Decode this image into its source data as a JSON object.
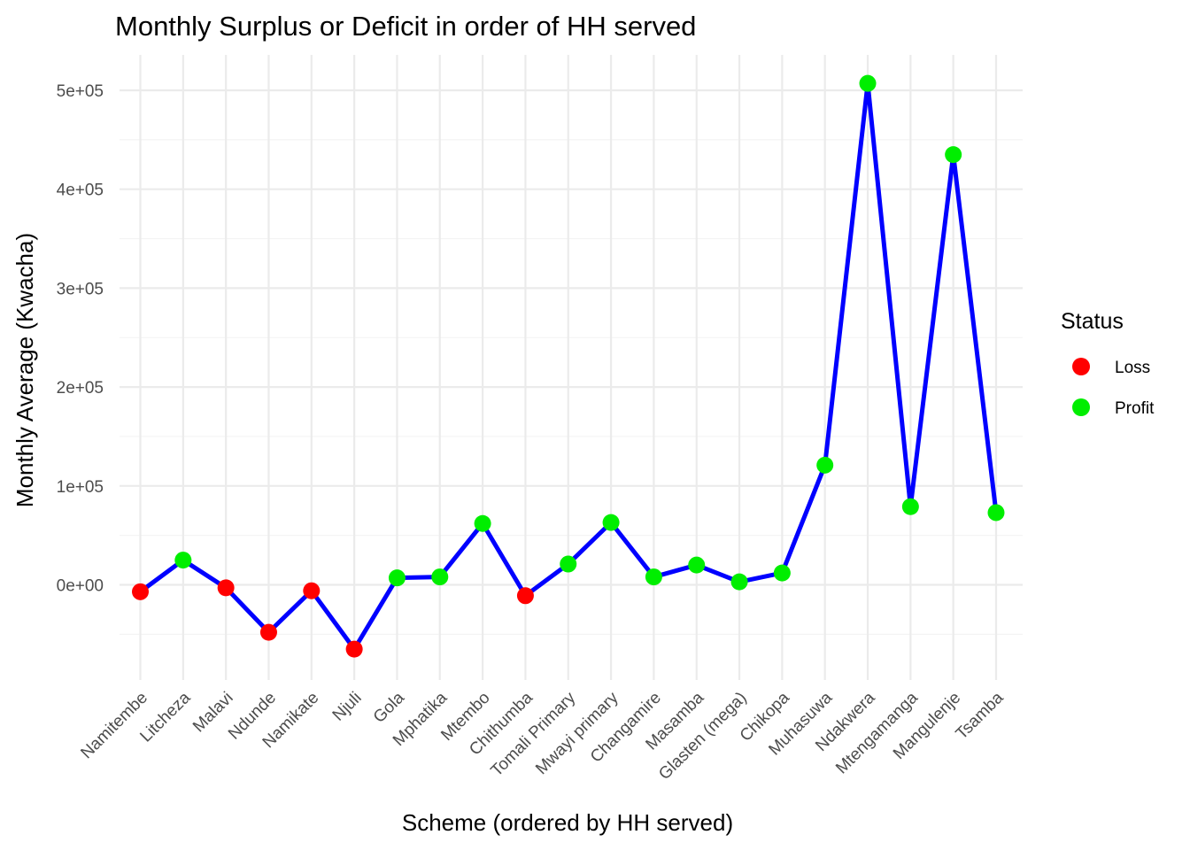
{
  "chart_data": {
    "type": "line",
    "title": "Monthly Surplus or Deficit in order of HH served",
    "xlabel": "Scheme (ordered by HH served)",
    "ylabel": "Monthly Average (Kwacha)",
    "categories": [
      "Namitembe",
      "Litcheza",
      "Malavi",
      "Ndunde",
      "Namikate",
      "Njuli",
      "Gola",
      "Mphatika",
      "Mtembo",
      "Chithumba",
      "Tomali Primary",
      "Mwayi primary",
      "Changamire",
      "Masamba",
      "Glasten (mega)",
      "Chikopa",
      "Muhasuwa",
      "Ndakwera",
      "Mtengamanga",
      "Mangulenje",
      "Tsamba"
    ],
    "values": [
      -7000,
      25000,
      -3000,
      -48000,
      -6000,
      -65000,
      7000,
      8000,
      62000,
      -11000,
      21000,
      63000,
      8000,
      20000,
      3000,
      12000,
      121000,
      507000,
      79000,
      435000,
      73000
    ],
    "status": [
      "Loss",
      "Profit",
      "Loss",
      "Loss",
      "Loss",
      "Loss",
      "Profit",
      "Profit",
      "Profit",
      "Loss",
      "Profit",
      "Profit",
      "Profit",
      "Profit",
      "Profit",
      "Profit",
      "Profit",
      "Profit",
      "Profit",
      "Profit",
      "Profit"
    ],
    "yticks": [
      0,
      100000,
      200000,
      300000,
      400000,
      500000
    ],
    "ytick_labels": [
      "0e+00",
      "1e+05",
      "2e+05",
      "3e+05",
      "4e+05",
      "5e+05"
    ],
    "ylim": [
      -90000,
      535000
    ],
    "line_color": "#0000ff",
    "grid": true,
    "legend": {
      "title": "Status",
      "placement": "right",
      "entries": [
        {
          "label": "Loss",
          "color": "#ff0000"
        },
        {
          "label": "Profit",
          "color": "#00ee00"
        }
      ]
    }
  }
}
